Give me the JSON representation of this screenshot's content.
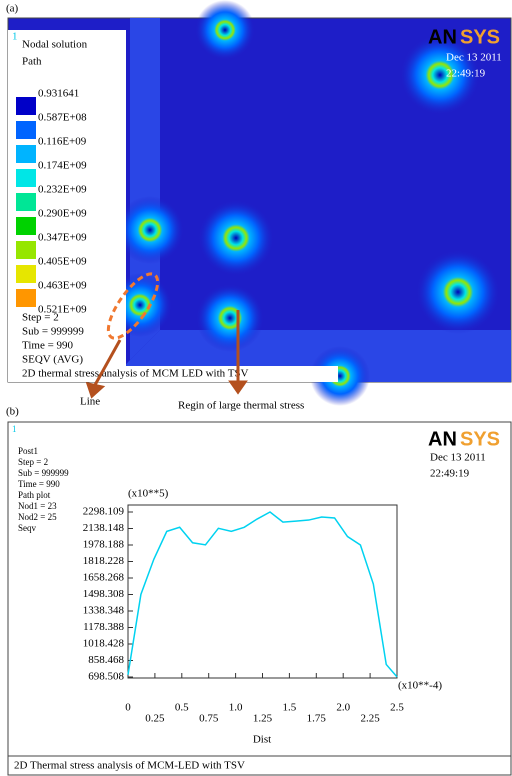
{
  "panel_a": {
    "label": "(a)",
    "corner_number": "1",
    "info_top": [
      "Nodal solution",
      "Path"
    ],
    "legend": {
      "labels": [
        "0.931641",
        "0.587E+08",
        "0.116E+09",
        "0.174E+09",
        "0.232E+09",
        "0.290E+09",
        "0.347E+09",
        "0.405E+09",
        "0.463E+09",
        "0.521E+09"
      ],
      "colors": [
        "#0000c8",
        "#0064ff",
        "#00b4ff",
        "#00e6e6",
        "#00e696",
        "#00d200",
        "#96e600",
        "#e6e600",
        "#ff9600"
      ]
    },
    "info_bottom": [
      "Step  = 2",
      "Sub  = 999999",
      "Time = 990",
      "SEQV  (AVG)"
    ],
    "caption": "2D thermal stress analysis of MCM LED with TSV",
    "logo": [
      "AN",
      "SYS"
    ],
    "date": "Dec 13 2011",
    "time": "22:49:19",
    "annotations": [
      "Line",
      "Regin of large thermal stress"
    ]
  },
  "chart_data": {
    "type": "line",
    "panel_label": "(b)",
    "corner_number": "1",
    "info": [
      "Post1",
      "Step  = 2",
      "Sub   = 999999",
      "Time = 990",
      "Path  plot",
      "Nod1 = 23",
      "Nod2 = 25",
      "Seqv"
    ],
    "logo": [
      "AN",
      "SYS"
    ],
    "date": "Dec 13 2011",
    "time": "22:49:19",
    "title": "2D Thermal stress analysis of MCM-LED with TSV",
    "x_label": "Dist",
    "y_unit_label": "(x10**5)",
    "x_unit_label": "(x10**-4)",
    "color": "#00d2f0",
    "x": [
      0,
      0.12,
      0.24,
      0.36,
      0.48,
      0.6,
      0.72,
      0.84,
      0.96,
      1.08,
      1.2,
      1.32,
      1.44,
      1.56,
      1.68,
      1.8,
      1.92,
      2.04,
      2.16,
      2.28,
      2.4,
      2.5
    ],
    "values": [
      720,
      1500,
      1840,
      2110,
      2150,
      2000,
      1980,
      2140,
      2110,
      2150,
      2230,
      2298,
      2200,
      2210,
      2220,
      2250,
      2240,
      2060,
      1978,
      1600,
      820,
      700
    ],
    "xlim": [
      0,
      2.5
    ],
    "ylim": [
      698.508,
      2298.109
    ],
    "xticks": [
      0,
      0.25,
      0.5,
      0.75,
      {
        "value": 1,
        "label": "1.0"
      },
      1.25,
      1.5,
      1.75,
      {
        "value": 2,
        "label": "2.0"
      },
      2.25,
      2.5
    ],
    "yticks": [
      698.508,
      858.468,
      1018.428,
      1178.388,
      1338.348,
      1498.308,
      1658.268,
      1818.228,
      1978.188,
      2138.148,
      2298.109
    ]
  }
}
